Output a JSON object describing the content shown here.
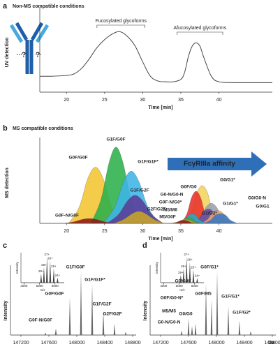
{
  "chart_data": [
    {
      "type": "line",
      "panel": "a",
      "title": "Non-MS compatible conditions",
      "x_label": "Time [min]",
      "y_label": "UV detection",
      "xlim": [
        16.5,
        47
      ],
      "ylim": [
        0,
        100
      ],
      "xticks": [
        20,
        25,
        30,
        35,
        40
      ],
      "annotations": [
        "Fucosylated glycoforms",
        "Afucosylated glycoforms"
      ],
      "icon_text": [
        "?",
        "?"
      ],
      "color": "#444",
      "x": [
        16.5,
        18,
        20,
        21,
        22,
        23,
        24,
        25,
        26,
        27,
        28,
        29,
        30,
        31,
        32,
        33,
        34,
        35,
        35.5,
        36,
        36.5,
        37,
        37.5,
        38,
        39,
        40,
        42,
        44,
        47
      ],
      "values": [
        20,
        20,
        21,
        23,
        30,
        42,
        56,
        66,
        73,
        76,
        70,
        58,
        38,
        20,
        14,
        13,
        13,
        16,
        25,
        45,
        58,
        62,
        58,
        44,
        20,
        13,
        12,
        12,
        12
      ]
    },
    {
      "type": "area",
      "panel": "b",
      "title": "MS compatible conditions",
      "x_label": "Time [min]",
      "y_label": "MS detection",
      "xlim": [
        16.5,
        47
      ],
      "ylim": [
        0,
        100
      ],
      "xticks": [
        20,
        25,
        30,
        35,
        40
      ],
      "annotation": "FcγRIIIa affinity",
      "series": [
        {
          "name": "G0F/G0F",
          "color": "#f2c531",
          "x": [
            20.3,
            21.7,
            22.8,
            23.8,
            24.8,
            25.9,
            27.3
          ],
          "values": [
            0,
            21,
            56,
            70,
            56,
            21,
            0
          ]
        },
        {
          "name": "G1F/G0F",
          "color": "#2bb04a",
          "x": [
            23.2,
            24.5,
            25.6,
            26.5,
            27.4,
            28.5,
            29.8
          ],
          "values": [
            0,
            29,
            76,
            95,
            76,
            29,
            0
          ]
        },
        {
          "name": "G1F/G1F*",
          "color": "#3cb4e6",
          "x": [
            24.8,
            26.3,
            27.5,
            28.5,
            29.5,
            30.7,
            32.2
          ],
          "values": [
            0,
            20,
            52,
            65,
            52,
            20,
            0
          ]
        },
        {
          "name": "G1F/G2F",
          "color": "#5b3c98",
          "x": [
            25.3,
            26.8,
            28,
            29,
            30,
            31.2,
            32.7
          ],
          "values": [
            0,
            11,
            28,
            35,
            28,
            11,
            0
          ]
        },
        {
          "name": "G2F/G2F",
          "color": "#c8a428",
          "x": [
            26.2,
            27.5,
            28.6,
            29.5,
            30.4,
            31.5,
            32.8
          ],
          "values": [
            0,
            5,
            12,
            15,
            12,
            5,
            0
          ]
        },
        {
          "name": "G0F-N/G0F",
          "color": "#8b1a1a",
          "x": [
            19.7,
            21,
            22.1,
            23,
            23.9,
            25,
            26.3
          ],
          "values": [
            0,
            2,
            5,
            6,
            5,
            2,
            0
          ]
        },
        {
          "name": "G0/G1*",
          "color": "#f2d45c",
          "x": [
            35.4,
            36.4,
            37.1,
            37.8,
            38.5,
            39.2,
            40.2
          ],
          "values": [
            0,
            14,
            38,
            47,
            38,
            14,
            0
          ]
        },
        {
          "name": "G0F/G0",
          "color": "#e8312a",
          "x": [
            35,
            35.8,
            36.4,
            37,
            37.6,
            38.2,
            39
          ],
          "values": [
            0,
            12,
            32,
            40,
            32,
            12,
            0
          ]
        },
        {
          "name": "G1/G1*",
          "color": "#9aa0b0",
          "x": [
            36.8,
            37.7,
            38.3,
            39,
            39.7,
            40.3,
            41.2
          ],
          "values": [
            0,
            8,
            20,
            25,
            20,
            8,
            0
          ]
        },
        {
          "name": "G1/G2*",
          "color": "#6a4c9c",
          "x": [
            36.4,
            37.3,
            37.9,
            38.6,
            39.3,
            39.9,
            40.8
          ],
          "values": [
            0,
            5,
            14,
            18,
            14,
            5,
            0
          ]
        },
        {
          "name": "G0/G0-N",
          "color": "#e8a070",
          "x": [
            37.6,
            38.5,
            39.1,
            39.8,
            40.5,
            41.1,
            42
          ],
          "values": [
            0,
            5,
            13,
            16,
            13,
            5,
            0
          ]
        },
        {
          "name": "G0/G1",
          "color": "#3a78c0",
          "x": [
            38,
            38.9,
            39.5,
            40.2,
            40.9,
            41.5,
            42.4
          ],
          "values": [
            0,
            4,
            10,
            12,
            10,
            4,
            0
          ]
        },
        {
          "name": "G0-N/G0-N",
          "color": "#2aa8c8",
          "x": [
            34.7,
            35.5,
            36,
            36.5,
            37,
            37.5,
            38.3
          ],
          "values": [
            0,
            4,
            10,
            12,
            10,
            4,
            0
          ]
        },
        {
          "name": "G0F-N/G0*",
          "color": "#3aaa4a",
          "x": [
            34.2,
            35,
            35.5,
            36,
            36.5,
            37,
            37.8
          ],
          "values": [
            0,
            2,
            6,
            7,
            6,
            2,
            0
          ]
        },
        {
          "name": "M5/M6",
          "color": "#c9b22e",
          "x": [
            33.8,
            34.6,
            35.1,
            35.6,
            36.1,
            36.6,
            37.4
          ],
          "values": [
            0,
            2,
            4,
            5,
            4,
            2,
            0
          ]
        },
        {
          "name": "M5/G0F",
          "color": "#8b1a1a",
          "x": [
            33.6,
            34.4,
            34.9,
            35.4,
            35.9,
            36.4,
            37.2
          ],
          "values": [
            0,
            1,
            3,
            4,
            3,
            1,
            0
          ]
        }
      ]
    },
    {
      "type": "spectrum",
      "panel": "c",
      "y_label": "Intensity",
      "color": "#666",
      "xlim": [
        147050,
        148850
      ],
      "ylim": [
        0,
        100
      ],
      "xticks": [
        147200,
        147600,
        148000,
        148400,
        148800
      ],
      "x": [
        147550,
        147700,
        147900,
        148060,
        148220,
        148380,
        148540,
        148700
      ],
      "values": [
        4,
        10,
        58,
        100,
        80,
        38,
        18,
        5
      ],
      "labels": [
        null,
        "G0F-N/G0F",
        "G0F/G0F",
        "G1F/G0F",
        "G1F/G1F*",
        "G1F/G2F",
        "G2F/G2F",
        null
      ],
      "inset": {
        "type": "spectrum",
        "x_label": "m/z",
        "y_label": "Intensity",
        "color": "#444",
        "xlim": [
          3800,
          6600
        ],
        "ylim": [
          0,
          100
        ],
        "xticks": [
          4000,
          5000,
          6000
        ],
        "x": [
          5104,
          5287,
          5482,
          5693,
          5921,
          6168
        ],
        "values": [
          35,
          60,
          100,
          85,
          55,
          20
        ],
        "labels": [
          "29+",
          "28+",
          "27+",
          "26+",
          "25+",
          "24+"
        ]
      }
    },
    {
      "type": "spectrum",
      "panel": "d",
      "y_label": "Intensity",
      "x_label": "Da",
      "color": "#666",
      "xlim": [
        147050,
        148850
      ],
      "ylim": [
        0,
        100
      ],
      "xticks": [
        147200,
        147600,
        148000,
        148400,
        148800
      ],
      "x": [
        147500,
        147600,
        147650,
        147700,
        147850,
        147930,
        148010,
        148170,
        148330,
        148490
      ],
      "values": [
        7,
        25,
        14,
        18,
        80,
        55,
        100,
        45,
        22,
        6
      ],
      "labels": [
        "G0-N/G0-N",
        "G0F/G0-N*",
        "M5/M5",
        "G0/G0",
        "G0/G0F",
        "G0F/M5",
        "G0F/G1*",
        "G1F/G1*",
        "G1F/G2*",
        null
      ],
      "inset": {
        "type": "spectrum",
        "x_label": "m/z",
        "y_label": "Intensity",
        "color": "#444",
        "xlim": [
          3800,
          6600
        ],
        "ylim": [
          0,
          100
        ],
        "xticks": [
          4000,
          5000,
          6000
        ],
        "x": [
          5104,
          5287,
          5482,
          5693,
          5921,
          6168
        ],
        "values": [
          30,
          55,
          100,
          80,
          50,
          18
        ],
        "labels": [
          "29+",
          "28+",
          "27+",
          "26+",
          "25+",
          "24+"
        ]
      }
    }
  ]
}
